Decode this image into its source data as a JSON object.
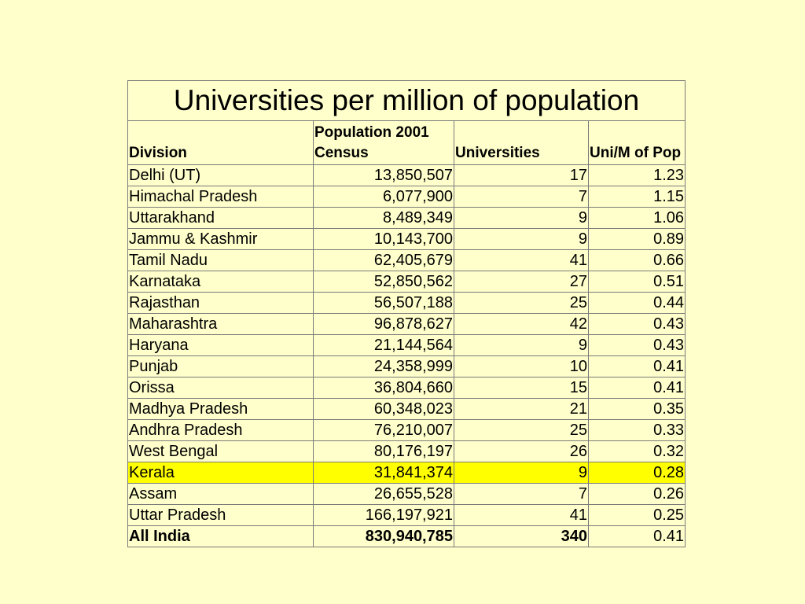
{
  "table": {
    "title": "Universities per million of population",
    "headers": [
      "Division",
      "Population 2001 Census",
      "Universities",
      "Uni/M of Pop"
    ],
    "rows": [
      {
        "division": "Delhi (UT)",
        "population": "13,850,507",
        "universities": "17",
        "ratio": "1.23"
      },
      {
        "division": "Himachal Pradesh",
        "population": "6,077,900",
        "universities": "7",
        "ratio": "1.15"
      },
      {
        "division": "Uttarakhand",
        "population": "8,489,349",
        "universities": "9",
        "ratio": "1.06"
      },
      {
        "division": "Jammu & Kashmir",
        "population": "10,143,700",
        "universities": "9",
        "ratio": "0.89"
      },
      {
        "division": "Tamil Nadu",
        "population": "62,405,679",
        "universities": "41",
        "ratio": "0.66"
      },
      {
        "division": "Karnataka",
        "population": "52,850,562",
        "universities": "27",
        "ratio": "0.51"
      },
      {
        "division": "Rajasthan",
        "population": "56,507,188",
        "universities": "25",
        "ratio": "0.44"
      },
      {
        "division": "Maharashtra",
        "population": "96,878,627",
        "universities": "42",
        "ratio": "0.43"
      },
      {
        "division": "Haryana",
        "population": "21,144,564",
        "universities": "9",
        "ratio": "0.43"
      },
      {
        "division": "Punjab",
        "population": "24,358,999",
        "universities": "10",
        "ratio": "0.41"
      },
      {
        "division": "Orissa",
        "population": "36,804,660",
        "universities": "15",
        "ratio": "0.41"
      },
      {
        "division": "Madhya Pradesh",
        "population": "60,348,023",
        "universities": "21",
        "ratio": "0.35"
      },
      {
        "division": "Andhra Pradesh",
        "population": "76,210,007",
        "universities": "25",
        "ratio": "0.33"
      },
      {
        "division": "West Bengal",
        "population": "80,176,197",
        "universities": "26",
        "ratio": "0.32"
      },
      {
        "division": "Kerala",
        "population": "31,841,374",
        "universities": "9",
        "ratio": "0.28",
        "highlight": true
      },
      {
        "division": "Assam",
        "population": "26,655,528",
        "universities": "7",
        "ratio": "0.26"
      },
      {
        "division": "Uttar Pradesh",
        "population": "166,197,921",
        "universities": "41",
        "ratio": "0.25"
      }
    ],
    "total": {
      "division": "All India",
      "population": "830,940,785",
      "universities": "340",
      "ratio": "0.41"
    }
  },
  "colors": {
    "background": "#FFFFCC",
    "highlight": "#FFFF00"
  }
}
